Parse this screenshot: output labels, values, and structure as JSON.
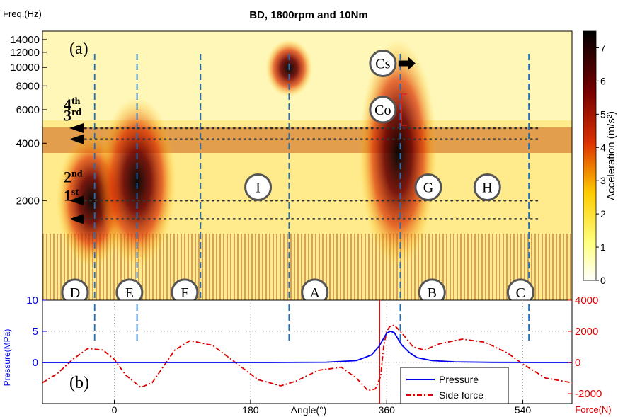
{
  "title": "BD, 1800rpm and 10Nm",
  "chart_data": [
    {
      "type": "heatmap",
      "panel_label": "(a)",
      "ylabel": "Freq.(Hz)",
      "y_ticks": [
        2000,
        4000,
        6000,
        8000,
        10000,
        12000,
        14000
      ],
      "y_scale": "log",
      "x_ticks_shared": [
        0,
        180,
        360,
        540
      ],
      "xlim": [
        -95,
        605
      ],
      "colorbar": {
        "label": "Acceleration (m/s²)",
        "ticks": [
          0,
          1,
          2,
          3,
          4,
          5,
          6,
          7
        ],
        "range": [
          0,
          7.5
        ],
        "colormap": "hot (white-yellow-red-black)"
      },
      "order_labels": [
        "4th",
        "3rd",
        "2nd",
        "1st"
      ],
      "order_freqs": [
        4800,
        4200,
        2000,
        1600
      ],
      "event_lines_deg": [
        -26,
        30,
        114,
        231,
        378,
        548
      ],
      "hotspots": [
        {
          "angle": -30,
          "freq_lo": 900,
          "freq_hi": 4500,
          "intensity": 0.9
        },
        {
          "angle": 30,
          "freq_lo": 900,
          "freq_hi": 7000,
          "intensity": 1.0
        },
        {
          "angle": 375,
          "freq_lo": 900,
          "freq_hi": 14000,
          "intensity": 1.0
        },
        {
          "angle": 231,
          "freq_lo": 7000,
          "freq_hi": 14000,
          "intensity": 0.6
        }
      ],
      "markers": [
        {
          "id": "Cs",
          "label": "Cs",
          "angle": 355,
          "freq": 10500
        },
        {
          "id": "Co",
          "label": "Co",
          "angle": 355,
          "freq": 6000
        },
        {
          "id": "I",
          "label": "I",
          "angle": 190,
          "freq": 2350
        },
        {
          "id": "G",
          "label": "G",
          "angle": 415,
          "freq": 2350
        },
        {
          "id": "H",
          "label": "H",
          "angle": 493,
          "freq": 2350
        },
        {
          "id": "D",
          "label": "D",
          "angle": -52,
          "freq": 660
        },
        {
          "id": "E",
          "label": "E",
          "angle": 20,
          "freq": 660
        },
        {
          "id": "F",
          "label": "F",
          "angle": 93,
          "freq": 660
        },
        {
          "id": "A",
          "label": "A",
          "angle": 265,
          "freq": 660
        },
        {
          "id": "B",
          "label": "B",
          "angle": 420,
          "freq": 660
        },
        {
          "id": "C",
          "label": "C",
          "angle": 537,
          "freq": 660
        }
      ]
    },
    {
      "type": "line",
      "panel_label": "(b)",
      "xlabel": "Angle(°)",
      "ylabel_left": "Pressure(MPa)",
      "ylabel_right": "Force(N)",
      "x_ticks": [
        0,
        180,
        360,
        540
      ],
      "xlim": [
        -95,
        605
      ],
      "ylim_left": [
        0,
        10
      ],
      "y_ticks_left": [
        0,
        5,
        10
      ],
      "ylim_right": [
        -2000,
        4000
      ],
      "y_ticks_right": [
        -2000,
        0,
        2000,
        4000
      ],
      "series": [
        {
          "name": "Pressure",
          "axis": "left",
          "color": "#0000ee",
          "style": "solid",
          "x": [
            -95,
            0,
            100,
            200,
            280,
            320,
            340,
            350,
            360,
            365,
            370,
            375,
            380,
            390,
            400,
            420,
            450,
            500,
            605
          ],
          "y": [
            0,
            0,
            0,
            0,
            0.05,
            0.3,
            1.2,
            2.6,
            4.7,
            5.0,
            4.8,
            3.8,
            2.8,
            1.6,
            0.8,
            0.3,
            0.1,
            0.02,
            0
          ]
        },
        {
          "name": "Side force",
          "axis": "right",
          "color": "#dd0000",
          "style": "dash-dot",
          "x": [
            -95,
            -75,
            -55,
            -35,
            -15,
            0,
            15,
            35,
            50,
            80,
            100,
            130,
            160,
            190,
            220,
            240,
            270,
            300,
            320,
            335,
            345,
            352,
            356,
            360,
            364,
            370,
            378,
            385,
            395,
            410,
            430,
            460,
            490,
            520,
            540,
            570,
            605
          ],
          "y": [
            -1300,
            -700,
            200,
            900,
            800,
            200,
            -800,
            -1600,
            -1300,
            800,
            1400,
            1100,
            0,
            -1100,
            -1500,
            -1200,
            -500,
            -300,
            -1000,
            -1800,
            -1700,
            -900,
            1000,
            2000,
            2300,
            2400,
            2000,
            1600,
            1000,
            800,
            1200,
            1500,
            1300,
            600,
            -100,
            -1000,
            -1300
          ]
        }
      ],
      "event_lines_deg": [
        -26,
        30,
        231,
        378,
        548
      ],
      "vertical_red_line_deg": 360
    }
  ]
}
